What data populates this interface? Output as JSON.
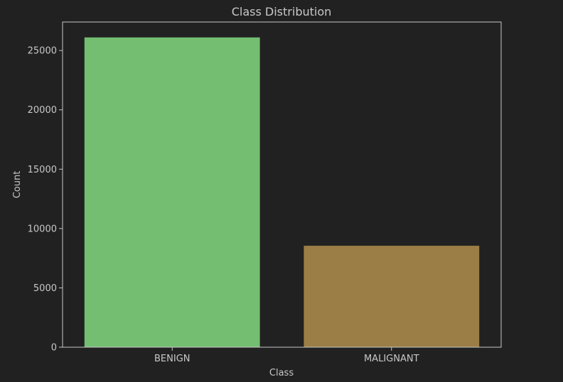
{
  "chart_data": {
    "type": "bar",
    "title": "Class Distribution",
    "xlabel": "Class",
    "ylabel": "Count",
    "categories": [
      "BENIGN",
      "MALIGNANT"
    ],
    "values": [
      26100,
      8550
    ],
    "bar_colors": [
      "#74be72",
      "#9b7e45"
    ],
    "ylim": [
      0,
      27400
    ],
    "yticks": [
      0,
      5000,
      10000,
      15000,
      20000,
      25000
    ],
    "grid": false
  },
  "colors": {
    "background": "#212121",
    "axes": "#c8c8c8",
    "text": "#c8c8c8"
  }
}
